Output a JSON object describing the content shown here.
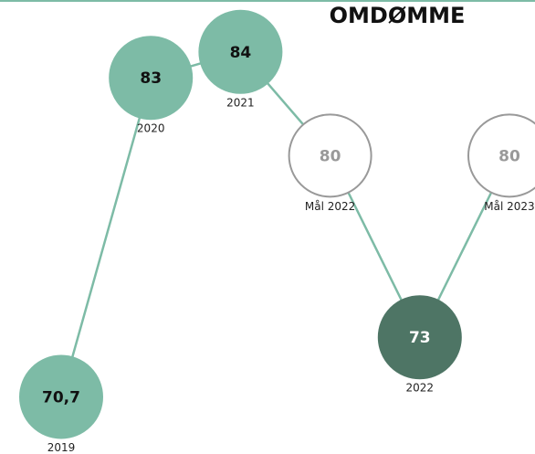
{
  "chart_data": {
    "type": "line",
    "title": "OMDØMME",
    "categories": [
      "2019",
      "2020",
      "2021",
      "Mål 2022",
      "2022",
      "Mål 2023"
    ],
    "values": [
      70.7,
      83,
      84,
      80,
      73,
      80
    ],
    "value_labels": [
      "70,7",
      "83",
      "84",
      "80",
      "73",
      "80"
    ],
    "color": "#7dbba6",
    "marker_fill": [
      "#7dbba6",
      "#7dbba6",
      "#7dbba6",
      "#ffffff",
      "#4e7565",
      "#ffffff"
    ],
    "marker_stroke": [
      "#7dbba6",
      "#7dbba6",
      "#7dbba6",
      "#999999",
      "#4e7565",
      "#999999"
    ],
    "label_color": [
      "#111111",
      "#111111",
      "#111111",
      "#999999",
      "#ffffff",
      "#999999"
    ],
    "ylim": [
      68.5,
      86
    ]
  }
}
